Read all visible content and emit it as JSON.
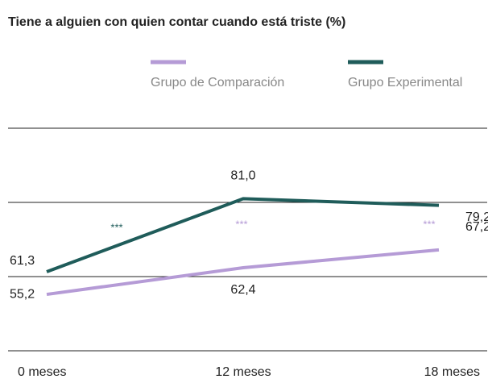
{
  "chart_data": {
    "type": "line",
    "title": "Tiene a alguien con quien contar cuando está triste (%)",
    "categories": [
      "0 meses",
      "12 meses",
      "18 meses"
    ],
    "series": [
      {
        "name": "Grupo de Comparación",
        "color": "#b59bd6",
        "values": [
          55.2,
          62.4,
          67.2
        ],
        "value_labels": [
          "55,2",
          "62,4",
          "67,2"
        ]
      },
      {
        "name": "Grupo Experimental",
        "color": "#1f5c5a",
        "values": [
          61.3,
          81.0,
          79.2
        ],
        "value_labels": [
          "61,3",
          "81,0",
          "79,2"
        ]
      }
    ],
    "annotations": [
      {
        "text": "***",
        "color": "#1f5c5a"
      },
      {
        "text": "***",
        "color": "#b59bd6"
      },
      {
        "text": "***",
        "color": "#b59bd6"
      }
    ],
    "ylim": [
      40,
      100
    ],
    "yticks": [
      40,
      60,
      80,
      100
    ],
    "grid": true
  }
}
